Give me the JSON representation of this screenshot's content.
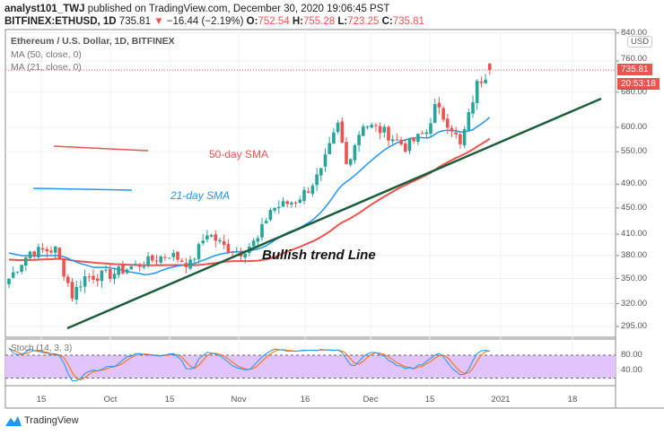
{
  "header": {
    "line1_user": "analyst101_TWJ",
    "line1_rest": "published on TradingView.com, December 30, 2020 19:06:45 PST",
    "symbol": "BITFINEX:ETHUSD, 1D",
    "last": "735.81",
    "change": "−16.44 (−2.19%)",
    "o": "752.54",
    "h": "755.28",
    "l": "723.25",
    "c": "735.81"
  },
  "legend": [
    "Ethereum / U.S. Dollar, 1D, BITFINEX",
    "MA (50, close, 0)",
    "MA (21, close, 0)"
  ],
  "currency": "USD",
  "last_price_tag": "735.81",
  "countdown_tag": "20:53:18",
  "annotations": {
    "sma50": "50-day SMA",
    "sma21": "21-day SMA",
    "trend": "Bullish trend Line"
  },
  "stoch_label": "Stoch (14, 3, 3)",
  "brand": "TradingView",
  "colors": {
    "up": "#26a69a",
    "down": "#ef5350",
    "ma50": "#ef5350",
    "ma21": "#2196f3",
    "trend": "#1b5e3b",
    "stoch_k": "#2196f3",
    "stoch_d": "#ff6d00",
    "stoch_band": "#e1c4fb"
  },
  "chart_data": {
    "type": "candlestick",
    "title": "Ethereum / U.S. Dollar, 1D, BITFINEX",
    "price_ticks": [
      840,
      760,
      680,
      600,
      550,
      490,
      450,
      410,
      380,
      350,
      320,
      295
    ],
    "stoch_ticks": [
      80,
      40
    ],
    "date_ticks": [
      "15",
      "Oct",
      "15",
      "Nov",
      "16",
      "Dec",
      "15",
      "2021",
      "18"
    ],
    "key_closes": [
      [
        0,
        350
      ],
      [
        5,
        385
      ],
      [
        11,
        388
      ],
      [
        15,
        330
      ],
      [
        18,
        352
      ],
      [
        24,
        355
      ],
      [
        33,
        372
      ],
      [
        38,
        382
      ],
      [
        43,
        368
      ],
      [
        47,
        412
      ],
      [
        51,
        392
      ],
      [
        55,
        385
      ],
      [
        59,
        402
      ],
      [
        62,
        448
      ],
      [
        68,
        462
      ],
      [
        71,
        482
      ],
      [
        74,
        512
      ],
      [
        78,
        605
      ],
      [
        80,
        525
      ],
      [
        84,
        608
      ],
      [
        89,
        590
      ],
      [
        94,
        560
      ],
      [
        99,
        590
      ],
      [
        101,
        645
      ],
      [
        105,
        600
      ],
      [
        107,
        560
      ],
      [
        109,
        625
      ],
      [
        111,
        700
      ],
      [
        114,
        736
      ]
    ]
  }
}
